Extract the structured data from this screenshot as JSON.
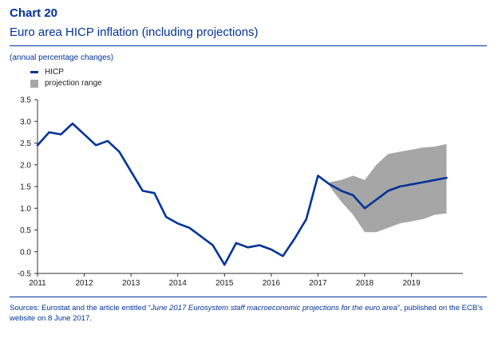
{
  "header": {
    "chart_number": "Chart 20",
    "title": "Euro area HICP inflation (including projections)",
    "subtitle": "(annual percentage changes)"
  },
  "colors": {
    "accent": "#003399",
    "range": "#a6a6a6"
  },
  "source": {
    "prefix": "Sources: Eurostat and the article entitled “",
    "italic": "June 2017 Eurosystem staff macroeconomic projections for the euro area",
    "suffix": "”, published on the ECB’s website on 8 June 2017."
  },
  "chart_data": {
    "type": "line",
    "legend": [
      "HICP",
      "projection range"
    ],
    "legend_position": "top-left",
    "grid": false,
    "xlim": [
      2011.0,
      2020.1
    ],
    "ylim": [
      -0.5,
      3.5
    ],
    "x_ticks": [
      "2011",
      "2012",
      "2013",
      "2014",
      "2015",
      "2016",
      "2017",
      "2018",
      "2019"
    ],
    "y_ticks": [
      "3.5",
      "3.0",
      "2.5",
      "2.0",
      "1.5",
      "1.0",
      "0.5",
      "0.0",
      "-0.5"
    ],
    "series": [
      {
        "name": "HICP",
        "x": [
          2011.0,
          2011.25,
          2011.5,
          2011.75,
          2012.0,
          2012.25,
          2012.5,
          2012.75,
          2013.0,
          2013.25,
          2013.5,
          2013.75,
          2014.0,
          2014.25,
          2014.5,
          2014.75,
          2015.0,
          2015.25,
          2015.5,
          2015.75,
          2016.0,
          2016.25,
          2016.5,
          2016.75,
          2017.0,
          2017.25,
          2017.5,
          2017.75,
          2018.0,
          2018.25,
          2018.5,
          2018.75,
          2019.0,
          2019.25,
          2019.5,
          2019.75
        ],
        "values": [
          2.45,
          2.75,
          2.7,
          2.95,
          2.7,
          2.45,
          2.55,
          2.3,
          1.85,
          1.4,
          1.35,
          0.8,
          0.65,
          0.55,
          0.35,
          0.15,
          -0.3,
          0.2,
          0.1,
          0.15,
          0.05,
          -0.1,
          0.3,
          0.75,
          1.75,
          1.55,
          1.4,
          1.3,
          1.0,
          1.2,
          1.4,
          1.5,
          1.55,
          1.6,
          1.65,
          1.7
        ]
      }
    ],
    "projection_range": {
      "name": "projection range",
      "x": [
        2017.25,
        2017.5,
        2017.75,
        2018.0,
        2018.25,
        2018.5,
        2018.75,
        2019.0,
        2019.25,
        2019.5,
        2019.75
      ],
      "upper": [
        1.6,
        1.65,
        1.75,
        1.65,
        2.0,
        2.25,
        2.3,
        2.35,
        2.4,
        2.42,
        2.48
      ],
      "lower": [
        1.5,
        1.15,
        0.85,
        0.45,
        0.45,
        0.55,
        0.65,
        0.7,
        0.75,
        0.85,
        0.88
      ]
    }
  }
}
